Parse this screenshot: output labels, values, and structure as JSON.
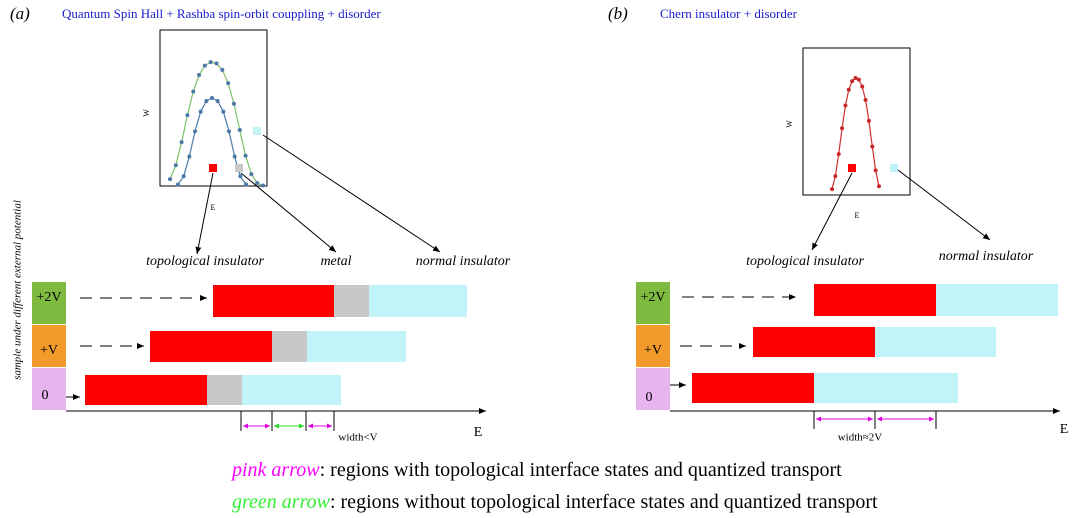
{
  "panels": [
    {
      "label": "(a)",
      "title": "Quantum Spin Hall + Rashba spin-orbit couppling + disorder",
      "inset_ylabel": "W",
      "inset_xlabel": "E",
      "phases": [
        "topological insulator",
        "metal",
        "normal insulator"
      ],
      "potentials": [
        "+2V",
        "+V",
        "0"
      ],
      "width_label": "width<V",
      "axis_label": "E"
    },
    {
      "label": "(b)",
      "title": "Chern insulator + disorder",
      "inset_ylabel": "W",
      "inset_xlabel": "E",
      "phases": [
        "topological insulator",
        "normal insulator"
      ],
      "potentials": [
        "+2V",
        "+V",
        "0"
      ],
      "width_label": "width≈2V",
      "axis_label": "E"
    }
  ],
  "y_axis_label": "sample under different external potential",
  "legend": [
    {
      "key": "pink arrow",
      "text": ": regions with topological interface states and quantized transport"
    },
    {
      "key": "green arrow",
      "text": ": regions without topological interface states and quantized transport"
    }
  ]
}
